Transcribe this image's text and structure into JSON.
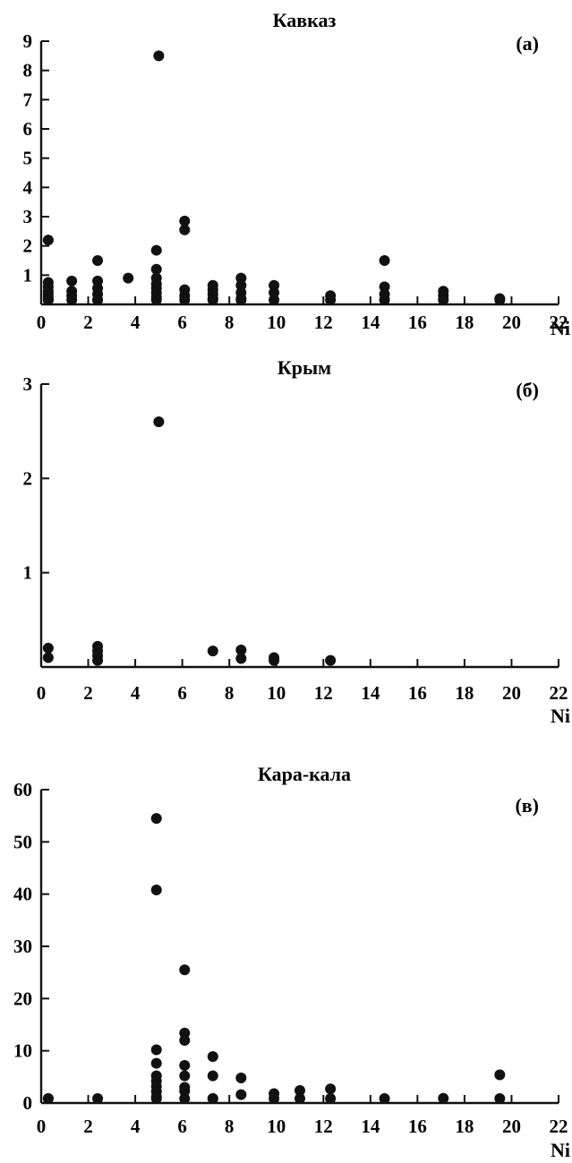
{
  "chart_data": [
    {
      "type": "scatter",
      "title": "Кавказ",
      "panel_label": "(а)",
      "xlabel": "Ni",
      "ylabel": "",
      "xlim": [
        0,
        22
      ],
      "ylim": [
        0,
        9
      ],
      "xticks": [
        0,
        2,
        4,
        6,
        8,
        10,
        12,
        14,
        16,
        18,
        20,
        22
      ],
      "yticks": [
        1,
        2,
        3,
        4,
        5,
        6,
        7,
        8,
        9
      ],
      "points": [
        [
          0.3,
          2.2
        ],
        [
          0.3,
          0.75
        ],
        [
          0.3,
          0.6
        ],
        [
          0.3,
          0.45
        ],
        [
          0.3,
          0.35
        ],
        [
          0.3,
          0.25
        ],
        [
          0.3,
          0.15
        ],
        [
          0.3,
          0.05
        ],
        [
          1.3,
          0.8
        ],
        [
          1.3,
          0.45
        ],
        [
          1.3,
          0.3
        ],
        [
          1.3,
          0.15
        ],
        [
          2.4,
          1.5
        ],
        [
          2.4,
          0.8
        ],
        [
          2.4,
          0.55
        ],
        [
          2.4,
          0.35
        ],
        [
          2.4,
          0.15
        ],
        [
          2.4,
          0.05
        ],
        [
          3.7,
          0.9
        ],
        [
          5.0,
          8.5
        ],
        [
          4.9,
          1.85
        ],
        [
          4.9,
          1.2
        ],
        [
          4.9,
          0.9
        ],
        [
          4.9,
          0.7
        ],
        [
          4.9,
          0.55
        ],
        [
          4.9,
          0.4
        ],
        [
          4.9,
          0.25
        ],
        [
          4.9,
          0.1
        ],
        [
          6.1,
          2.85
        ],
        [
          6.1,
          2.55
        ],
        [
          6.1,
          0.5
        ],
        [
          6.1,
          0.3
        ],
        [
          6.1,
          0.15
        ],
        [
          7.3,
          0.65
        ],
        [
          7.3,
          0.5
        ],
        [
          7.3,
          0.35
        ],
        [
          7.3,
          0.2
        ],
        [
          7.3,
          0.05
        ],
        [
          8.5,
          0.9
        ],
        [
          8.5,
          0.65
        ],
        [
          8.5,
          0.4
        ],
        [
          8.5,
          0.2
        ],
        [
          8.5,
          0.05
        ],
        [
          9.9,
          0.65
        ],
        [
          9.9,
          0.4
        ],
        [
          9.9,
          0.15
        ],
        [
          12.3,
          0.3
        ],
        [
          12.3,
          0.15
        ],
        [
          14.6,
          1.5
        ],
        [
          14.6,
          0.6
        ],
        [
          14.6,
          0.35
        ],
        [
          14.6,
          0.15
        ],
        [
          17.1,
          0.45
        ],
        [
          17.1,
          0.3
        ],
        [
          17.1,
          0.15
        ],
        [
          19.5,
          0.2
        ],
        [
          19.5,
          0.1
        ]
      ]
    },
    {
      "type": "scatter",
      "title": "Крым",
      "panel_label": "(б)",
      "xlabel": "Ni",
      "ylabel": "",
      "xlim": [
        0,
        22
      ],
      "ylim": [
        0,
        3
      ],
      "xticks": [
        0,
        2,
        4,
        6,
        8,
        10,
        12,
        14,
        16,
        18,
        20,
        22
      ],
      "yticks": [
        1,
        2,
        3
      ],
      "points": [
        [
          0.3,
          0.2
        ],
        [
          0.3,
          0.1
        ],
        [
          2.4,
          0.22
        ],
        [
          2.4,
          0.17
        ],
        [
          2.4,
          0.12
        ],
        [
          2.4,
          0.07
        ],
        [
          5.0,
          2.6
        ],
        [
          7.3,
          0.17
        ],
        [
          8.5,
          0.18
        ],
        [
          8.5,
          0.09
        ],
        [
          9.9,
          0.1
        ],
        [
          9.9,
          0.07
        ],
        [
          12.3,
          0.07
        ]
      ]
    },
    {
      "type": "scatter",
      "title": "Кара-кала",
      "panel_label": "(в)",
      "xlabel": "Ni",
      "ylabel": "",
      "xlim": [
        0,
        22
      ],
      "ylim": [
        0,
        60
      ],
      "xticks": [
        0,
        2,
        4,
        6,
        8,
        10,
        12,
        14,
        16,
        18,
        20,
        22
      ],
      "yticks": [
        0,
        10,
        20,
        30,
        40,
        50,
        60
      ],
      "points": [
        [
          0.3,
          0.8
        ],
        [
          0.3,
          0.3
        ],
        [
          2.4,
          0.2
        ],
        [
          4.9,
          54.5
        ],
        [
          4.9,
          40.8
        ],
        [
          4.9,
          10.2
        ],
        [
          4.9,
          7.6
        ],
        [
          4.9,
          5.2
        ],
        [
          4.9,
          4.2
        ],
        [
          4.9,
          3.2
        ],
        [
          4.9,
          2.2
        ],
        [
          4.9,
          1.2
        ],
        [
          4.9,
          0.3
        ],
        [
          6.1,
          25.5
        ],
        [
          6.1,
          13.4
        ],
        [
          6.1,
          12.0
        ],
        [
          6.1,
          7.2
        ],
        [
          6.1,
          5.2
        ],
        [
          6.1,
          3.0
        ],
        [
          6.1,
          2.3
        ],
        [
          6.1,
          0.6
        ],
        [
          7.3,
          8.9
        ],
        [
          7.3,
          5.2
        ],
        [
          7.3,
          0.6
        ],
        [
          7.3,
          0.1
        ],
        [
          8.5,
          4.8
        ],
        [
          8.5,
          1.6
        ],
        [
          9.9,
          1.8
        ],
        [
          9.9,
          0.2
        ],
        [
          11.0,
          2.4
        ],
        [
          11.0,
          0.3
        ],
        [
          12.3,
          2.7
        ],
        [
          12.3,
          0.2
        ],
        [
          14.6,
          0.1
        ],
        [
          17.1,
          0.9
        ],
        [
          19.5,
          5.4
        ],
        [
          19.5,
          0.6
        ]
      ]
    }
  ]
}
